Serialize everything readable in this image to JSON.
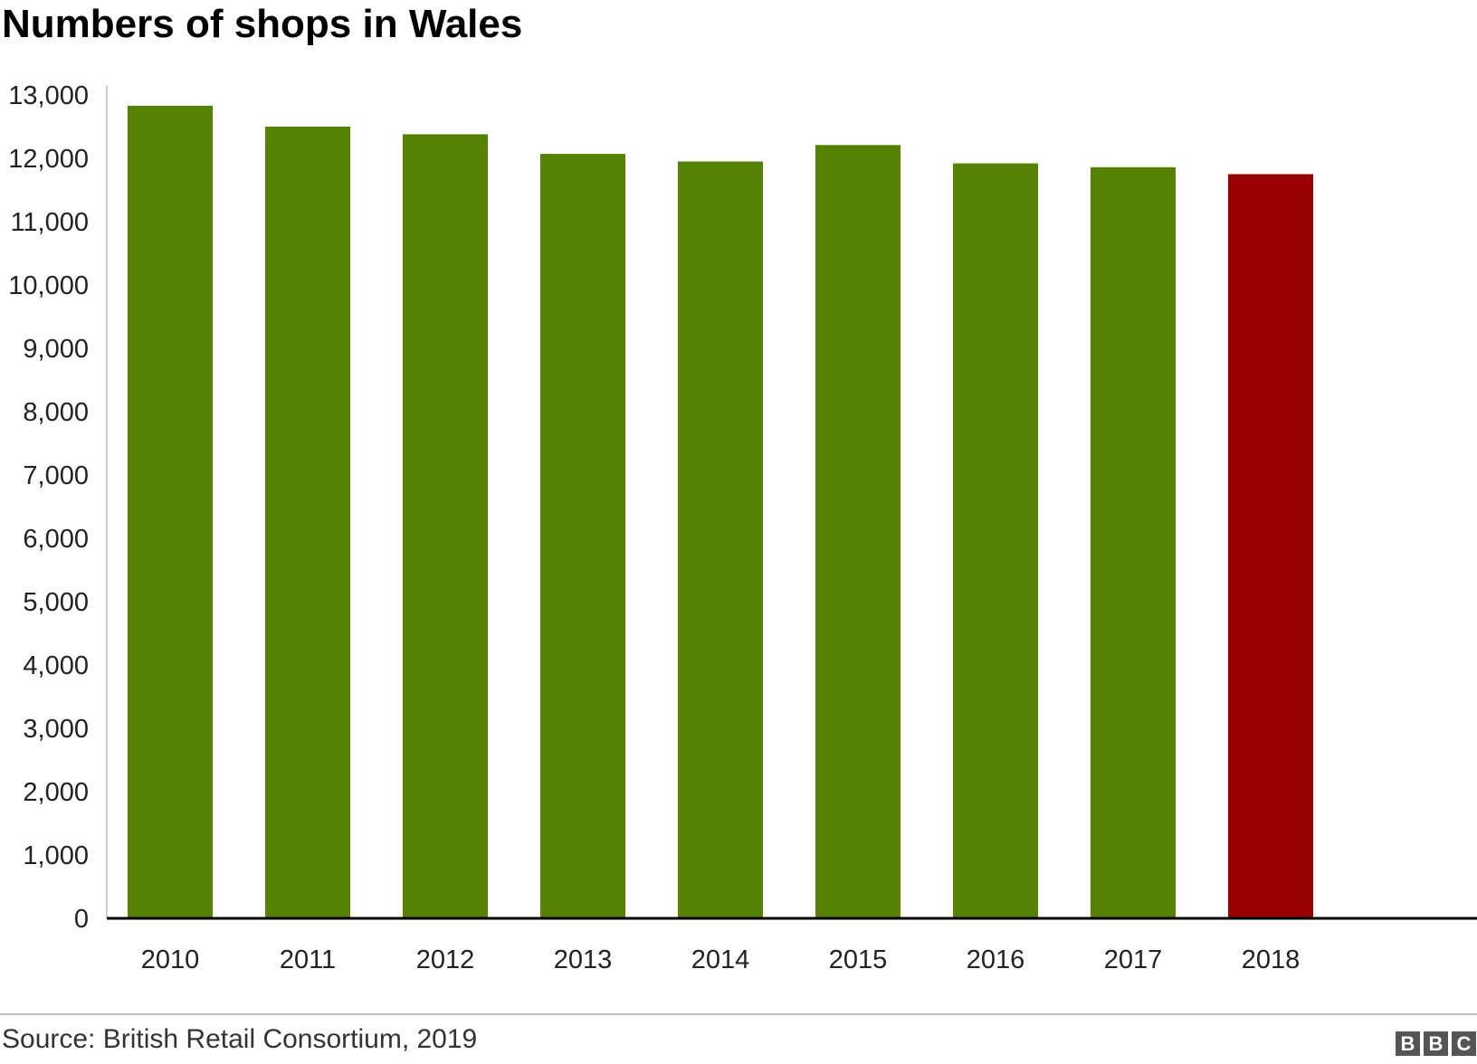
{
  "title": "Numbers of shops in Wales",
  "source": "Source: British Retail Consortium, 2019",
  "logo": [
    "B",
    "B",
    "C"
  ],
  "colors": {
    "bar": "#568203",
    "highlight": "#990000",
    "axis": "#000000",
    "yaxis": "#cccccc"
  },
  "chart_data": {
    "type": "bar",
    "categories": [
      "2010",
      "2011",
      "2012",
      "2013",
      "2014",
      "2015",
      "2016",
      "2017",
      "2018"
    ],
    "values": [
      12830,
      12500,
      12380,
      12070,
      11950,
      12210,
      11920,
      11860,
      11750
    ],
    "highlight_index": 8,
    "ylim": [
      0,
      13000
    ],
    "yticks": [
      0,
      1000,
      2000,
      3000,
      4000,
      5000,
      6000,
      7000,
      8000,
      9000,
      10000,
      11000,
      12000,
      13000
    ],
    "ytick_labels": [
      "0",
      "1,000",
      "2,000",
      "3,000",
      "4,000",
      "5,000",
      "6,000",
      "7,000",
      "8,000",
      "9,000",
      "10,000",
      "11,000",
      "12,000",
      "13,000"
    ],
    "grid": false,
    "xlabel": "",
    "ylabel": ""
  }
}
